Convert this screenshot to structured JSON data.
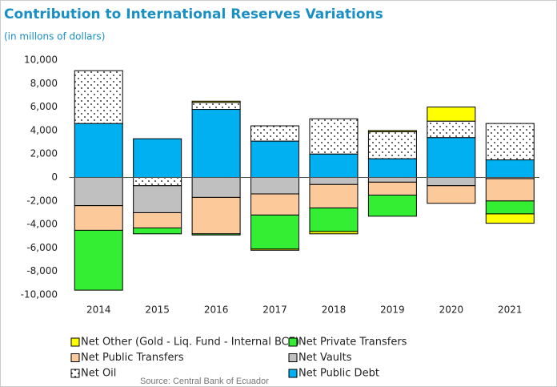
{
  "chart_data": {
    "type": "stacked_bar",
    "title": "Contribution to International Reserves Variations",
    "subtitle": "(in millons of dollars)",
    "source": "Source: Central Bank of Ecuador",
    "categories": [
      "2014",
      "2015",
      "2016",
      "2017",
      "2018",
      "2019",
      "2020",
      "2021"
    ],
    "series": [
      {
        "name": "Net Other (Gold - Liq. Fund - Internal BCE)",
        "color": "#ffff00",
        "values": [
          0,
          0,
          100,
          -100,
          -200,
          100,
          1200,
          -800
        ]
      },
      {
        "name": "Net Private Transfers",
        "color": "#33ee33",
        "values": [
          -5100,
          -500,
          -100,
          -2900,
          -2000,
          -1800,
          0,
          -1100
        ]
      },
      {
        "name": "Net Public Transfers",
        "color": "#fcc99b",
        "values": [
          -2100,
          -1300,
          -3100,
          -1800,
          -2000,
          -1100,
          -1500,
          -1900
        ]
      },
      {
        "name": "Net Vaults",
        "color": "#c0c0c0",
        "values": [
          -2400,
          -2300,
          -1700,
          -1400,
          -600,
          -400,
          -700,
          -100
        ]
      },
      {
        "name": "Net Oil",
        "color": "#ffffff",
        "pattern": "dots",
        "values": [
          4500,
          -700,
          600,
          1300,
          3000,
          2300,
          1400,
          3100
        ]
      },
      {
        "name": "Net Public Debt",
        "color": "#00b0f0",
        "values": [
          4600,
          3300,
          5800,
          3100,
          2000,
          1600,
          3400,
          1500
        ]
      }
    ],
    "ylim": [
      -10000,
      10000
    ],
    "yticks": [
      {
        "value": -10000,
        "label": "-10,000"
      },
      {
        "value": -8000,
        "label": "-8,000"
      },
      {
        "value": -6000,
        "label": "-6,000"
      },
      {
        "value": -4000,
        "label": "-4,000"
      },
      {
        "value": -2000,
        "label": "-2,000"
      },
      0,
      {
        "value": 2000,
        "label": "2,000"
      },
      {
        "value": 4000,
        "label": "4,000"
      },
      {
        "value": 6000,
        "label": "6,000"
      },
      {
        "value": 8000,
        "label": "8,000"
      },
      {
        "value": 10000,
        "label": "10,000"
      }
    ],
    "grid": false
  }
}
